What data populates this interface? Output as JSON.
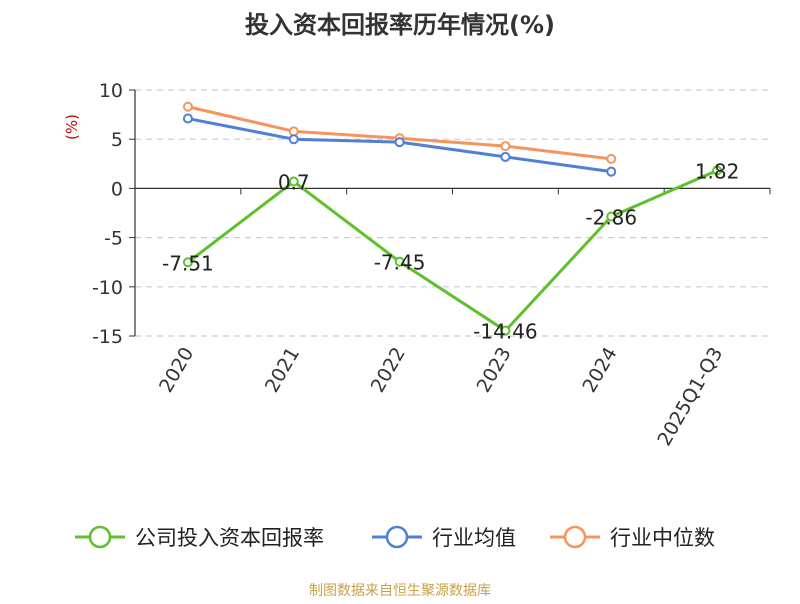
{
  "colors": {
    "company": "#5dc12b",
    "industry_avg": "#4f7fd8",
    "industry_median": "#f7935c",
    "title": "#333333",
    "axis": "#333333",
    "grid": "#cccccc",
    "ylabel": "#cc0000",
    "source": "#c8a24a"
  },
  "source": "制图数据来自恒生聚源数据库",
  "chart_data": {
    "type": "line",
    "title": "投入资本回报率历年情况(%)",
    "xlabel": "",
    "ylabel": "(%)",
    "categories": [
      "2020",
      "2021",
      "2022",
      "2023",
      "2024",
      "2025Q1-Q3"
    ],
    "ylim": [
      -15,
      10
    ],
    "yticks": [
      10,
      5,
      0,
      -5,
      -10,
      -15
    ],
    "grid": true,
    "legend_position": "bottom",
    "series": [
      {
        "name": "公司投入资本回报率",
        "color_key": "company",
        "values": [
          -7.51,
          0.7,
          -7.45,
          -14.46,
          -2.86,
          1.82
        ],
        "labels": true
      },
      {
        "name": "行业均值",
        "color_key": "industry_avg",
        "values": [
          7.1,
          5.0,
          4.7,
          3.2,
          1.7,
          null
        ],
        "labels": false
      },
      {
        "name": "行业中位数",
        "color_key": "industry_median",
        "values": [
          8.3,
          5.8,
          5.1,
          4.3,
          3.0,
          null
        ],
        "labels": false
      }
    ]
  }
}
